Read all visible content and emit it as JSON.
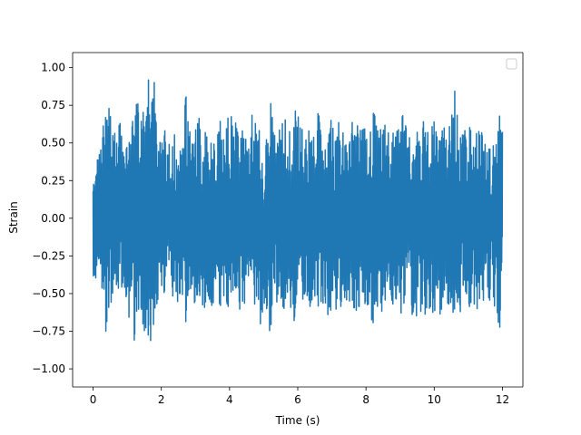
{
  "chart_data": {
    "type": "line",
    "title": "",
    "xlabel": "Time (s)",
    "ylabel": "Strain",
    "xlim": [
      -0.6,
      12.6
    ],
    "ylim": [
      -1.12,
      1.1
    ],
    "xticks": [
      0,
      2,
      4,
      6,
      8,
      10,
      12
    ],
    "yticks": [
      -1.0,
      -0.75,
      -0.5,
      -0.25,
      0.0,
      0.25,
      0.5,
      0.75,
      1.0
    ],
    "xtick_labels": [
      "0",
      "2",
      "4",
      "6",
      "8",
      "10",
      "12"
    ],
    "ytick_labels": [
      "−1.00",
      "−0.75",
      "−0.50",
      "−0.25",
      "0.00",
      "0.25",
      "0.50",
      "0.75",
      "1.00"
    ],
    "grid": false,
    "legend": {
      "placement": "upper-right",
      "entries": []
    },
    "series": [
      {
        "color": "#1f77b4",
        "x_range": [
          0,
          12
        ],
        "x": [
          0.0,
          0.1,
          0.2,
          0.3,
          0.4,
          0.5,
          0.6,
          0.7,
          0.8,
          0.9,
          1.0,
          1.1,
          1.2,
          1.3,
          1.4,
          1.5,
          1.6,
          1.7,
          1.8,
          1.9,
          2.0,
          2.1,
          2.2,
          2.3,
          2.4,
          2.5,
          2.6,
          2.7,
          2.8,
          2.9,
          3.0,
          3.1,
          3.2,
          3.3,
          3.4,
          3.5,
          3.6,
          3.7,
          3.8,
          3.9,
          4.0,
          4.1,
          4.2,
          4.3,
          4.4,
          4.5,
          4.6,
          4.7,
          4.8,
          4.9,
          5.0,
          5.1,
          5.2,
          5.3,
          5.4,
          5.5,
          5.6,
          5.7,
          5.8,
          5.9,
          6.0,
          6.1,
          6.2,
          6.3,
          6.4,
          6.5,
          6.6,
          6.7,
          6.8,
          6.9,
          7.0,
          7.1,
          7.2,
          7.3,
          7.4,
          7.5,
          7.6,
          7.7,
          7.8,
          7.9,
          8.0,
          8.1,
          8.2,
          8.3,
          8.4,
          8.5,
          8.6,
          8.7,
          8.8,
          8.9,
          9.0,
          9.1,
          9.2,
          9.3,
          9.4,
          9.5,
          9.6,
          9.7,
          9.8,
          9.9,
          10.0,
          10.1,
          10.2,
          10.3,
          10.4,
          10.5,
          10.6,
          10.7,
          10.8,
          10.9,
          11.0,
          11.1,
          11.2,
          11.3,
          11.4,
          11.5,
          11.6,
          11.7,
          11.8,
          11.9,
          12.0
        ],
        "y_max": [
          0.42,
          0.4,
          0.44,
          0.62,
          0.78,
          0.8,
          0.6,
          0.55,
          0.7,
          0.42,
          0.48,
          0.62,
          0.85,
          0.78,
          0.72,
          0.84,
          1.0,
          0.98,
          0.9,
          0.58,
          0.48,
          0.62,
          0.48,
          0.56,
          0.6,
          0.52,
          0.45,
          0.92,
          0.6,
          0.56,
          0.66,
          0.72,
          0.62,
          0.6,
          0.52,
          0.56,
          0.6,
          0.72,
          0.54,
          0.6,
          0.74,
          0.62,
          0.68,
          0.56,
          0.62,
          0.66,
          0.74,
          0.8,
          0.52,
          0.62,
          0.5,
          0.62,
          0.8,
          0.62,
          0.5,
          0.66,
          0.72,
          0.54,
          0.6,
          0.74,
          0.78,
          0.6,
          0.58,
          0.68,
          0.52,
          0.58,
          0.72,
          0.6,
          0.5,
          0.62,
          0.72,
          0.54,
          0.64,
          0.6,
          0.5,
          0.62,
          0.7,
          0.66,
          0.58,
          0.62,
          0.6,
          0.55,
          0.72,
          0.68,
          0.62,
          0.66,
          0.7,
          0.62,
          0.6,
          0.66,
          0.64,
          0.72,
          0.62,
          0.78,
          0.68,
          0.6,
          0.66,
          0.65,
          0.6,
          0.58,
          0.72,
          0.6,
          0.66,
          0.6,
          0.54,
          0.7,
          0.86,
          0.66,
          0.6,
          0.62,
          0.54,
          0.72,
          0.6,
          0.62,
          0.65,
          0.66,
          0.55,
          0.5,
          0.45,
          0.75,
          0.68
        ],
        "y_min": [
          -0.38,
          -0.42,
          -0.38,
          -0.55,
          -0.82,
          -0.6,
          -0.56,
          -0.5,
          -0.58,
          -0.52,
          -0.6,
          -0.72,
          -0.85,
          -0.6,
          -0.68,
          -0.82,
          -1.03,
          -0.78,
          -0.68,
          -0.56,
          -0.5,
          -0.5,
          -0.56,
          -0.5,
          -0.62,
          -0.54,
          -0.58,
          -0.72,
          -0.6,
          -0.54,
          -0.6,
          -0.52,
          -0.58,
          -0.62,
          -0.56,
          -0.6,
          -0.52,
          -0.58,
          -0.72,
          -0.58,
          -0.6,
          -0.56,
          -0.52,
          -0.62,
          -0.6,
          -0.66,
          -0.5,
          -0.62,
          -0.58,
          -0.72,
          -0.58,
          -0.62,
          -0.9,
          -0.54,
          -0.58,
          -0.6,
          -0.62,
          -0.56,
          -0.62,
          -0.72,
          -0.6,
          -0.58,
          -0.56,
          -0.72,
          -0.62,
          -0.55,
          -0.6,
          -0.58,
          -0.62,
          -0.66,
          -0.6,
          -0.62,
          -0.58,
          -0.6,
          -0.56,
          -0.6,
          -0.66,
          -0.62,
          -0.6,
          -0.58,
          -0.62,
          -0.66,
          -0.72,
          -0.58,
          -0.6,
          -0.64,
          -0.7,
          -0.62,
          -0.58,
          -0.6,
          -0.66,
          -0.58,
          -0.6,
          -0.62,
          -0.66,
          -0.7,
          -0.62,
          -0.8,
          -0.6,
          -0.66,
          -0.62,
          -0.72,
          -0.62,
          -0.56,
          -0.6,
          -0.7,
          -0.62,
          -0.66,
          -0.6,
          -0.62,
          -0.58,
          -0.62,
          -0.58,
          -0.66,
          -0.6,
          -0.62,
          -0.58,
          -0.56,
          -0.6,
          -0.78,
          -0.6
        ]
      }
    ]
  }
}
